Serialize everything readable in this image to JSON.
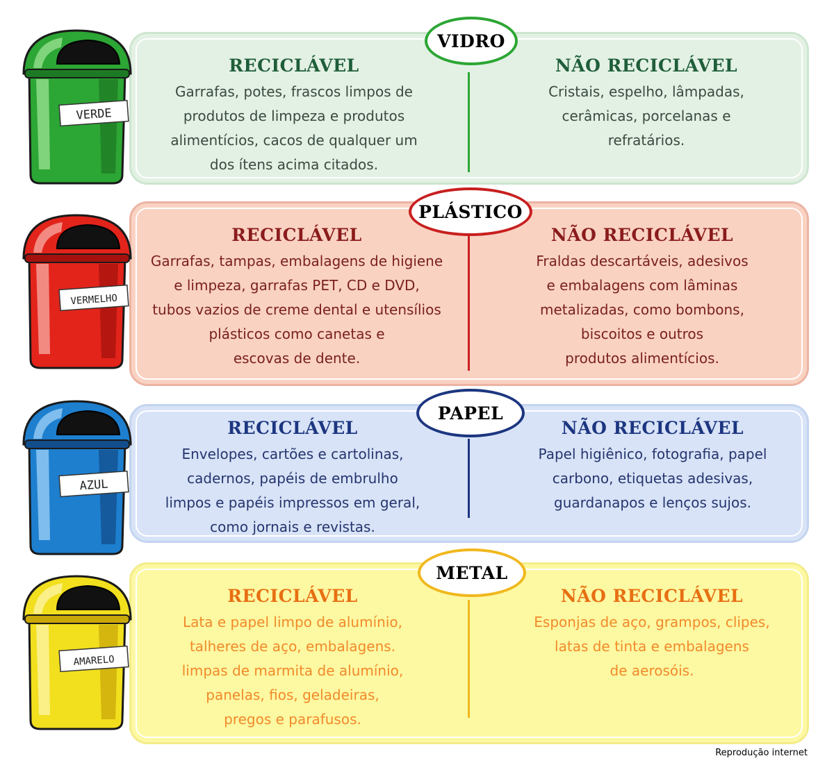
{
  "colors": {
    "vidro": {
      "main": "#2ca634",
      "dark": "#1d7a24",
      "light": "#8fdc8a",
      "panel": "#e3f1e4",
      "border": "#cde6cf",
      "head": "#1f5e3a",
      "text": "#3a4a40",
      "line": "#2ca634"
    },
    "plastico": {
      "main": "#e3241b",
      "dark": "#a5120e",
      "light": "#f59c94",
      "panel": "#f9d2c2",
      "border": "#ecb3a3",
      "head": "#8a1c1c",
      "text": "#7a2020",
      "line": "#c81f1f"
    },
    "papel": {
      "main": "#1e7fcf",
      "dark": "#124e8c",
      "light": "#8fc8f2",
      "panel": "#d8e3f7",
      "border": "#c3d4ef",
      "head": "#1c3680",
      "text": "#25356e",
      "line": "#1c3680"
    },
    "metal": {
      "main": "#f2df1e",
      "dark": "#c9a80a",
      "light": "#fbf39a",
      "panel": "#fdf8a2",
      "border": "#f4ec8a",
      "head": "#e76f12",
      "text": "#f08a2a",
      "line": "#f0b81e"
    }
  },
  "sections": [
    {
      "id": "vidro",
      "title": "VIDRO",
      "bin_label": "VERDE",
      "recyclable_heading": "RECICLÁVEL",
      "recyclable_lines": [
        "Garrafas, potes, frascos limpos de",
        "produtos de limpeza e produtos",
        "alimentícios, cacos de qualquer um",
        "dos ítens acima citados."
      ],
      "non_recyclable_heading": "NÃO RECICLÁVEL",
      "non_recyclable_lines": [
        "Cristais, espelho, lâmpadas,",
        "cerâmicas, porcelanas e",
        "refratários."
      ]
    },
    {
      "id": "plastico",
      "title": "PLÁSTICO",
      "bin_label": "VERMELHO",
      "recyclable_heading": "RECICLÁVEL",
      "recyclable_lines": [
        "Garrafas, tampas, embalagens de higiene",
        "e limpeza, garrafas PET, CD e DVD,",
        "tubos vazios de creme dental e utensílios",
        "plásticos como canetas e",
        "escovas de dente."
      ],
      "non_recyclable_heading": "NÃO RECICLÁVEL",
      "non_recyclable_lines": [
        "Fraldas descartáveis, adesivos",
        "e embalagens com lâminas",
        "metalizadas, como bombons,",
        "biscoitos e outros",
        "produtos alimentícios."
      ]
    },
    {
      "id": "papel",
      "title": "PAPEL",
      "bin_label": "AZUL",
      "recyclable_heading": "RECICLÁVEL",
      "recyclable_lines": [
        "Envelopes, cartões e cartolinas,",
        "cadernos, papéis de embrulho",
        "limpos e papéis impressos em geral,",
        "como jornais e revistas."
      ],
      "non_recyclable_heading": "NÃO RECICLÁVEL",
      "non_recyclable_lines": [
        "Papel higiênico, fotografia, papel",
        "carbono, etiquetas adesivas,",
        "guardanapos e lenços sujos."
      ]
    },
    {
      "id": "metal",
      "title": "METAL",
      "bin_label": "AMARELO",
      "recyclable_heading": "RECICLÁVEL",
      "recyclable_lines": [
        "Lata e papel limpo de alumínio,",
        "talheres de aço, embalagens.",
        "limpas de marmita de alumínio,",
        "panelas, fios, geladeiras,",
        "pregos e parafusos."
      ],
      "non_recyclable_heading": "NÃO RECICLÁVEL",
      "non_recyclable_lines": [
        "Esponjas de aço, grampos, clipes,",
        "latas de tinta e embalagens",
        "de aerosóis."
      ]
    }
  ],
  "credit": "Reprodução internet",
  "icons": {
    "bin": "trash-bin-icon"
  }
}
